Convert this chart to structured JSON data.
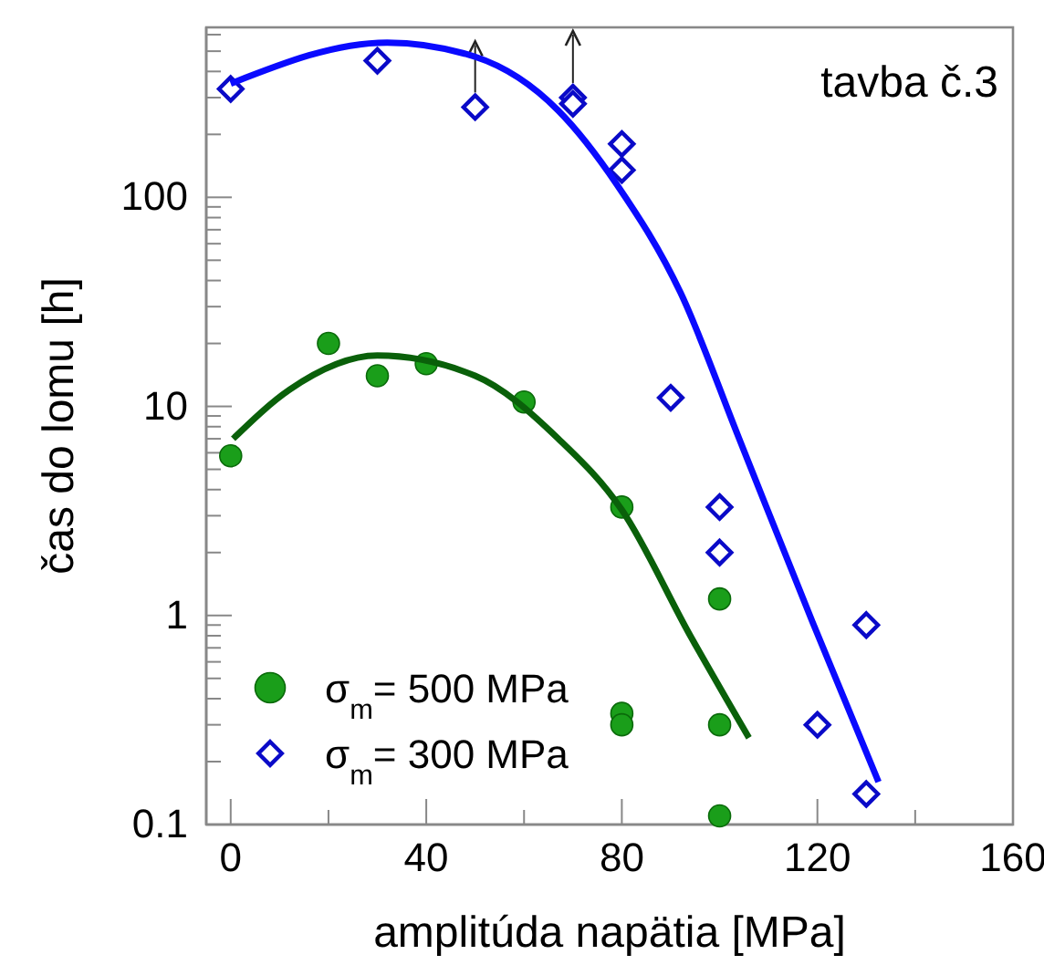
{
  "chart_data": {
    "type": "scatter",
    "xlabel": "amplitúda napätia [MPa]",
    "ylabel": "čas do lomu [h]",
    "annotations": [
      "tavba č.3"
    ],
    "log": "y",
    "grid": false,
    "legend": "bottom left",
    "xlim": [
      -5,
      160
    ],
    "ylim": [
      0.1,
      650
    ],
    "xticks": [
      0,
      {
        "value": 20,
        "label": null
      },
      40,
      {
        "value": 60,
        "label": null
      },
      80,
      {
        "value": 100,
        "label": null
      },
      120,
      {
        "value": 140,
        "label": null
      },
      160
    ],
    "yticks": [
      0.1,
      {
        "value": 0.2,
        "label": null
      },
      {
        "value": 0.3,
        "label": null
      },
      {
        "value": 0.4,
        "label": null
      },
      {
        "value": 0.5,
        "label": null
      },
      {
        "value": 0.6,
        "label": null
      },
      {
        "value": 0.7,
        "label": null
      },
      {
        "value": 0.8,
        "label": null
      },
      {
        "value": 0.9,
        "label": null
      },
      1,
      {
        "value": 2,
        "label": null
      },
      {
        "value": 3,
        "label": null
      },
      {
        "value": 4,
        "label": null
      },
      {
        "value": 5,
        "label": null
      },
      {
        "value": 6,
        "label": null
      },
      {
        "value": 7,
        "label": null
      },
      {
        "value": 8,
        "label": null
      },
      {
        "value": 9,
        "label": null
      },
      10,
      {
        "value": 20,
        "label": null
      },
      {
        "value": 30,
        "label": null
      },
      {
        "value": 40,
        "label": null
      },
      {
        "value": 50,
        "label": null
      },
      {
        "value": 60,
        "label": null
      },
      {
        "value": 70,
        "label": null
      },
      {
        "value": 80,
        "label": null
      },
      {
        "value": 90,
        "label": null
      },
      100,
      {
        "value": 200,
        "label": null
      },
      {
        "value": 300,
        "label": null
      },
      {
        "value": 400,
        "label": null
      },
      {
        "value": 500,
        "label": null
      },
      {
        "value": 600,
        "label": null
      }
    ],
    "series": [
      {
        "name": "σ$_{m}$= 500 MPa",
        "marker": "circle",
        "color": "#1a9e1a",
        "x": [
          0,
          20,
          30,
          40,
          60,
          80,
          80,
          80,
          100,
          100,
          100
        ],
        "values": [
          5.8,
          20,
          14,
          16,
          10.5,
          3.3,
          0.34,
          0.3,
          1.2,
          0.3,
          0.11
        ]
      },
      {
        "name": "σ$_{m}$= 300 MPa",
        "marker": "diamond",
        "color": "#0a0ac8",
        "x": [
          0,
          30,
          50,
          70,
          70,
          80,
          80,
          90,
          100,
          100,
          120,
          130,
          130
        ],
        "values": [
          330,
          450,
          270,
          300,
          280,
          180,
          135,
          11,
          3.3,
          2.0,
          0.3,
          0.9,
          0.14
        ]
      },
      {
        "type": "line",
        "color": "#0a600a",
        "x": [
          0.5,
          12,
          30,
          50,
          67,
          80,
          94,
          106
        ],
        "values": [
          7,
          12,
          17.5,
          14,
          7,
          3.2,
          0.8,
          0.26
        ]
      },
      {
        "type": "line",
        "color": "#0a0aff",
        "x": [
          0,
          32,
          50,
          67,
          79,
          92,
          104,
          119,
          132.5
        ],
        "values": [
          350,
          550,
          470,
          260,
          115,
          35,
          7,
          0.93,
          0.16
        ]
      }
    ]
  }
}
